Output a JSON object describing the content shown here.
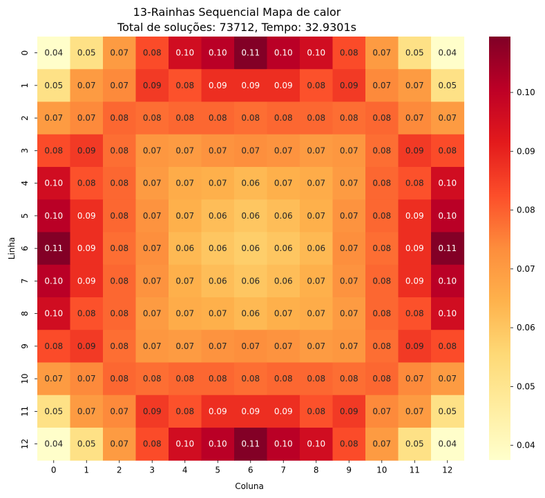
{
  "chart_data": {
    "type": "heatmap",
    "title": "13-Rainhas Sequencial Mapa de calor",
    "subtitle": "Total de soluções: 73712, Tempo: 32.9301s",
    "xlabel": "Coluna",
    "ylabel": "Linha",
    "x_categories": [
      "0",
      "1",
      "2",
      "3",
      "4",
      "5",
      "6",
      "7",
      "8",
      "9",
      "10",
      "11",
      "12"
    ],
    "y_categories": [
      "0",
      "1",
      "2",
      "3",
      "4",
      "5",
      "6",
      "7",
      "8",
      "9",
      "10",
      "11",
      "12"
    ],
    "values": [
      [
        0.038,
        0.052,
        0.07,
        0.083,
        0.096,
        0.101,
        0.109,
        0.101,
        0.096,
        0.083,
        0.07,
        0.052,
        0.038
      ],
      [
        0.052,
        0.07,
        0.074,
        0.086,
        0.082,
        0.088,
        0.088,
        0.088,
        0.082,
        0.086,
        0.074,
        0.07,
        0.052
      ],
      [
        0.07,
        0.074,
        0.079,
        0.078,
        0.079,
        0.079,
        0.078,
        0.079,
        0.079,
        0.078,
        0.079,
        0.074,
        0.07
      ],
      [
        0.083,
        0.086,
        0.078,
        0.071,
        0.07,
        0.072,
        0.073,
        0.072,
        0.07,
        0.071,
        0.078,
        0.086,
        0.083
      ],
      [
        0.096,
        0.082,
        0.079,
        0.07,
        0.066,
        0.065,
        0.063,
        0.065,
        0.066,
        0.07,
        0.079,
        0.082,
        0.096
      ],
      [
        0.101,
        0.088,
        0.079,
        0.072,
        0.065,
        0.062,
        0.06,
        0.062,
        0.065,
        0.072,
        0.079,
        0.088,
        0.101
      ],
      [
        0.109,
        0.088,
        0.078,
        0.073,
        0.063,
        0.06,
        0.058,
        0.06,
        0.063,
        0.073,
        0.078,
        0.088,
        0.109
      ],
      [
        0.101,
        0.088,
        0.079,
        0.072,
        0.065,
        0.062,
        0.06,
        0.062,
        0.065,
        0.072,
        0.079,
        0.088,
        0.101
      ],
      [
        0.096,
        0.082,
        0.079,
        0.07,
        0.066,
        0.065,
        0.063,
        0.065,
        0.066,
        0.07,
        0.079,
        0.082,
        0.096
      ],
      [
        0.083,
        0.086,
        0.078,
        0.071,
        0.07,
        0.072,
        0.073,
        0.072,
        0.07,
        0.071,
        0.078,
        0.086,
        0.083
      ],
      [
        0.07,
        0.074,
        0.079,
        0.078,
        0.079,
        0.079,
        0.078,
        0.079,
        0.079,
        0.078,
        0.079,
        0.074,
        0.07
      ],
      [
        0.052,
        0.07,
        0.074,
        0.086,
        0.082,
        0.088,
        0.088,
        0.088,
        0.082,
        0.086,
        0.074,
        0.07,
        0.052
      ],
      [
        0.038,
        0.052,
        0.07,
        0.083,
        0.096,
        0.101,
        0.109,
        0.101,
        0.096,
        0.083,
        0.07,
        0.052,
        0.038
      ]
    ],
    "labels": [
      [
        "0.04",
        "0.05",
        "0.07",
        "0.08",
        "0.10",
        "0.10",
        "0.11",
        "0.10",
        "0.10",
        "0.08",
        "0.07",
        "0.05",
        "0.04"
      ],
      [
        "0.05",
        "0.07",
        "0.07",
        "0.09",
        "0.08",
        "0.09",
        "0.09",
        "0.09",
        "0.08",
        "0.09",
        "0.07",
        "0.07",
        "0.05"
      ],
      [
        "0.07",
        "0.07",
        "0.08",
        "0.08",
        "0.08",
        "0.08",
        "0.08",
        "0.08",
        "0.08",
        "0.08",
        "0.08",
        "0.07",
        "0.07"
      ],
      [
        "0.08",
        "0.09",
        "0.08",
        "0.07",
        "0.07",
        "0.07",
        "0.07",
        "0.07",
        "0.07",
        "0.07",
        "0.08",
        "0.09",
        "0.08"
      ],
      [
        "0.10",
        "0.08",
        "0.08",
        "0.07",
        "0.07",
        "0.07",
        "0.06",
        "0.07",
        "0.07",
        "0.07",
        "0.08",
        "0.08",
        "0.10"
      ],
      [
        "0.10",
        "0.09",
        "0.08",
        "0.07",
        "0.07",
        "0.06",
        "0.06",
        "0.06",
        "0.07",
        "0.07",
        "0.08",
        "0.09",
        "0.10"
      ],
      [
        "0.11",
        "0.09",
        "0.08",
        "0.07",
        "0.06",
        "0.06",
        "0.06",
        "0.06",
        "0.06",
        "0.07",
        "0.08",
        "0.09",
        "0.11"
      ],
      [
        "0.10",
        "0.09",
        "0.08",
        "0.07",
        "0.07",
        "0.06",
        "0.06",
        "0.06",
        "0.07",
        "0.07",
        "0.08",
        "0.09",
        "0.10"
      ],
      [
        "0.10",
        "0.08",
        "0.08",
        "0.07",
        "0.07",
        "0.07",
        "0.06",
        "0.07",
        "0.07",
        "0.07",
        "0.08",
        "0.08",
        "0.10"
      ],
      [
        "0.08",
        "0.09",
        "0.08",
        "0.07",
        "0.07",
        "0.07",
        "0.07",
        "0.07",
        "0.07",
        "0.07",
        "0.08",
        "0.09",
        "0.08"
      ],
      [
        "0.07",
        "0.07",
        "0.08",
        "0.08",
        "0.08",
        "0.08",
        "0.08",
        "0.08",
        "0.08",
        "0.08",
        "0.08",
        "0.07",
        "0.07"
      ],
      [
        "0.05",
        "0.07",
        "0.07",
        "0.09",
        "0.08",
        "0.09",
        "0.09",
        "0.09",
        "0.08",
        "0.09",
        "0.07",
        "0.07",
        "0.05"
      ],
      [
        "0.04",
        "0.05",
        "0.07",
        "0.08",
        "0.10",
        "0.10",
        "0.11",
        "0.10",
        "0.10",
        "0.08",
        "0.07",
        "0.05",
        "0.04"
      ]
    ],
    "colorbar": {
      "vmin": 0.0375,
      "vmax": 0.1095,
      "ticks": [
        0.04,
        0.05,
        0.06,
        0.07,
        0.08,
        0.09,
        0.1
      ],
      "tick_labels": [
        "0.04",
        "0.05",
        "0.06",
        "0.07",
        "0.08",
        "0.09",
        "0.10"
      ]
    },
    "colormap": {
      "name": "YlOrRd",
      "stops": [
        "#ffffcc",
        "#ffeda0",
        "#fed976",
        "#feb24c",
        "#fd8d3c",
        "#fc4e2a",
        "#e31a1c",
        "#bd0026",
        "#800026"
      ]
    },
    "grid": false,
    "legend": "colorbar-right"
  }
}
